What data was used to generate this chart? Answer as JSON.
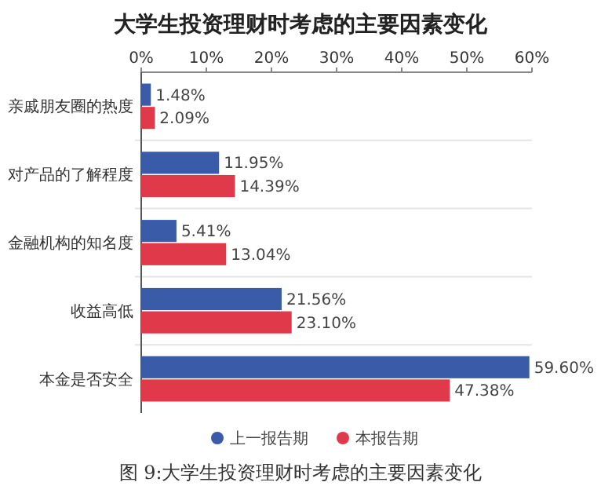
{
  "chart_data": {
    "type": "bar",
    "orientation": "horizontal",
    "title": "大学生投资理财时考虑的主要因素变化",
    "categories": [
      "亲戚朋友圈的热度",
      "对产品的了解程度",
      "金融机构的知名度",
      "收益高低",
      "本金是否安全"
    ],
    "series": [
      {
        "name": "上一报告期",
        "color": "#3a5ba8",
        "values": [
          1.48,
          11.95,
          5.41,
          21.56,
          59.6
        ],
        "value_labels": [
          "1.48%",
          "11.95%",
          "5.41%",
          "21.56%",
          "59.60%"
        ]
      },
      {
        "name": "本报告期",
        "color": "#e03a4a",
        "values": [
          2.09,
          14.39,
          13.04,
          23.1,
          47.38
        ],
        "value_labels": [
          "2.09%",
          "14.39%",
          "13.04%",
          "23.10%",
          "47.38%"
        ]
      }
    ],
    "xlim": [
      0,
      60
    ],
    "xticks": [
      {
        "value": 0,
        "label": "0%"
      },
      {
        "value": 10,
        "label": "10%"
      },
      {
        "value": 20,
        "label": "20%"
      },
      {
        "value": 30,
        "label": "30%"
      },
      {
        "value": 40,
        "label": "40%"
      },
      {
        "value": 50,
        "label": "50%"
      },
      {
        "value": 60,
        "label": "60%"
      }
    ],
    "legend": "bottom",
    "annotations": [
      "图 9:大学生投资理财时考虑的主要因素变化"
    ]
  }
}
